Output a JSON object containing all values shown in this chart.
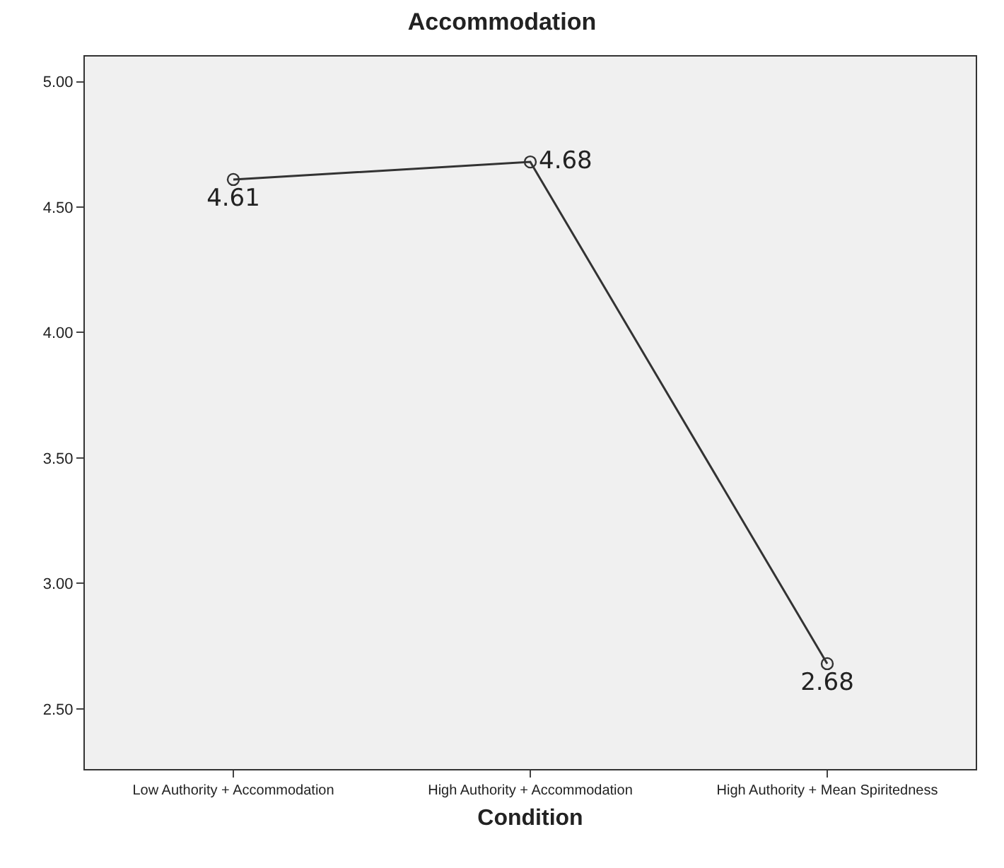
{
  "chart_data": {
    "type": "line",
    "title": "Accommodation",
    "xlabel": "Condition",
    "categories": [
      "Low Authority + Accommodation",
      "High Authority + Accommodation",
      "High Authority + Mean Spiritedness"
    ],
    "series": [
      {
        "color": "#333333",
        "values": [
          4.61,
          4.68,
          2.68
        ]
      }
    ],
    "data_labels": true,
    "marker": "circle",
    "line_style": "solid",
    "grid": false,
    "ylim": [
      2.26,
      5.1
    ],
    "yticks": [
      {
        "value": 2.5,
        "label": "2.50"
      },
      {
        "value": 3.0,
        "label": "3.00"
      },
      {
        "value": 3.5,
        "label": "3.50"
      },
      {
        "value": 4.0,
        "label": "4.00"
      },
      {
        "value": 4.5,
        "label": "4.50"
      },
      {
        "value": 5.0,
        "label": "5.00"
      }
    ]
  }
}
